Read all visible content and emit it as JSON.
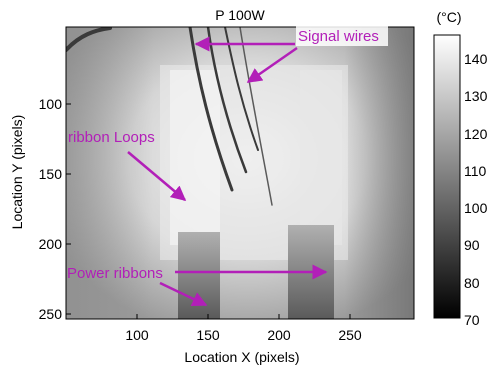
{
  "title": "P 100W",
  "xlabel": "Location X (pixels)",
  "ylabel": "Location Y (pixels)",
  "x_ticks": [
    "100",
    "150",
    "200",
    "250"
  ],
  "y_ticks": [
    "100",
    "150",
    "200",
    "250"
  ],
  "colorbar": {
    "unit": "(°C)",
    "ticks": [
      "140",
      "130",
      "120",
      "110",
      "100",
      "90",
      "80",
      "70"
    ],
    "range": [
      70,
      145
    ]
  },
  "annotations": {
    "signal_wires": "Signal wires",
    "ribbon_loops": "ribbon Loops",
    "power_ribbons": "Power ribbons"
  },
  "colors": {
    "annotation": "#b21fb8"
  }
}
